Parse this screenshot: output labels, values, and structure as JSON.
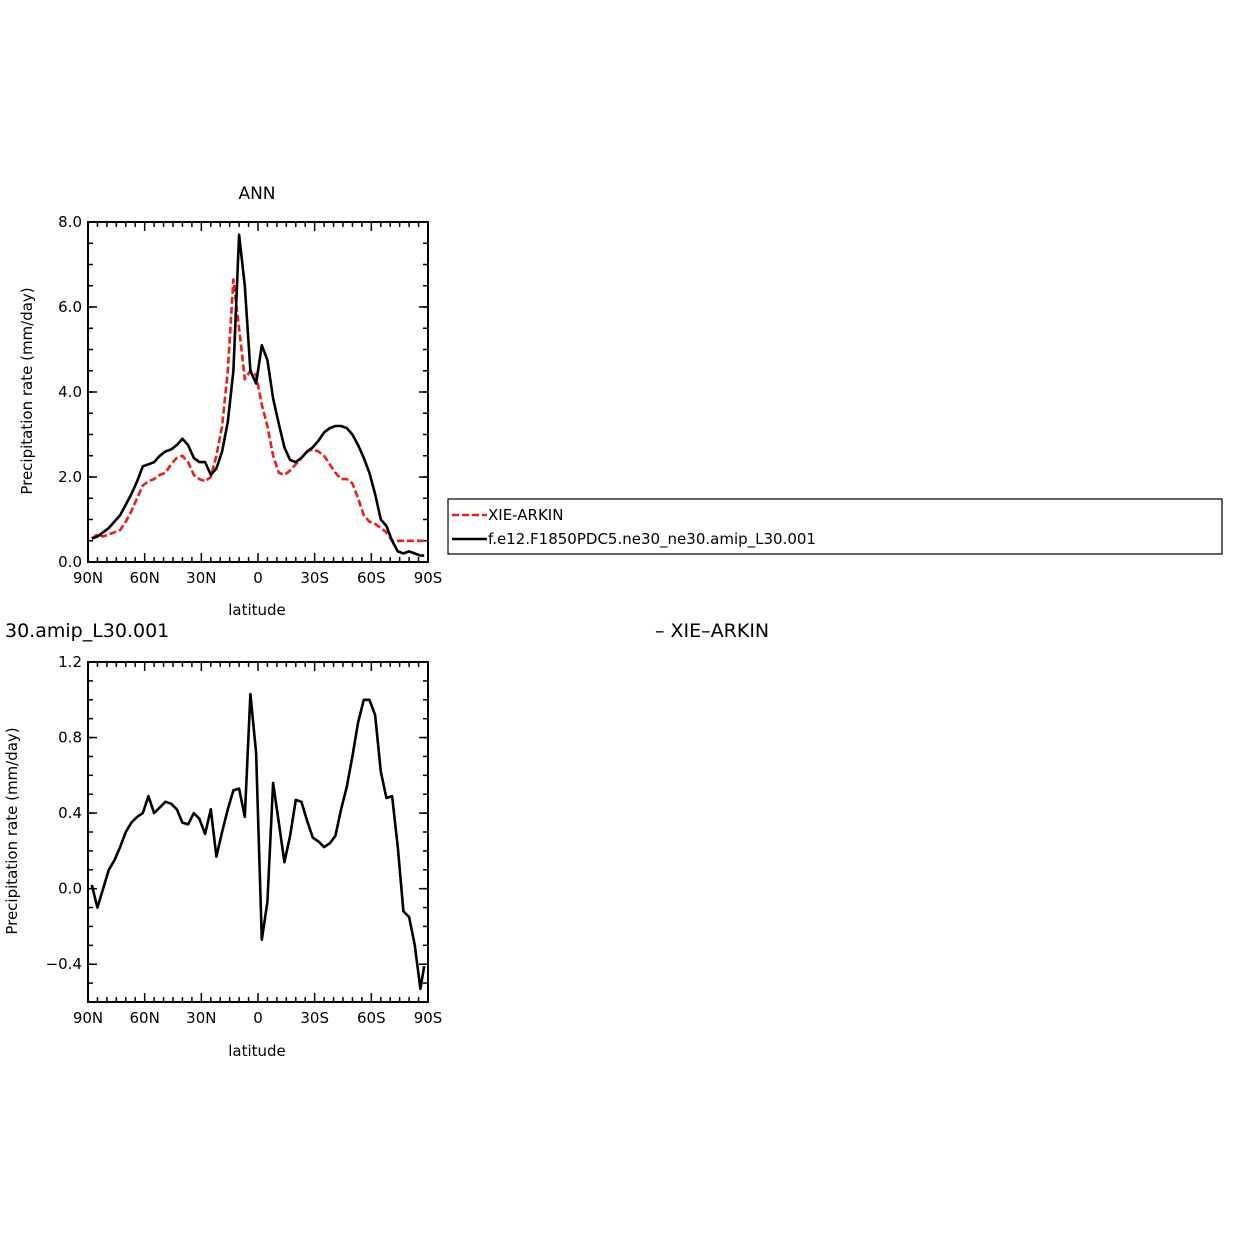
{
  "chart_data": [
    {
      "type": "line",
      "title": "ANN",
      "xlabel": "latitude",
      "ylabel": "Precipitation rate (mm/day)",
      "xlim": [
        90,
        -90
      ],
      "ylim": [
        0,
        8
      ],
      "xticks": [
        {
          "v": 90,
          "label": "90N"
        },
        {
          "v": 60,
          "label": "60N"
        },
        {
          "v": 30,
          "label": "30N"
        },
        {
          "v": 0,
          "label": "0"
        },
        {
          "v": -30,
          "label": "30S"
        },
        {
          "v": -60,
          "label": "60S"
        },
        {
          "v": -90,
          "label": "90S"
        }
      ],
      "yticks": [
        {
          "v": 0,
          "label": "0.0"
        },
        {
          "v": 2,
          "label": "2.0"
        },
        {
          "v": 4,
          "label": "4.0"
        },
        {
          "v": 6,
          "label": "6.0"
        },
        {
          "v": 8,
          "label": "8.0"
        }
      ],
      "legend_position": "right",
      "series": [
        {
          "name": "XIE-ARKIN",
          "color": "#e8201a",
          "dash": "dashed",
          "x": [
            88,
            85,
            82,
            79,
            76,
            73,
            70,
            67,
            64,
            61,
            58,
            55,
            52,
            49,
            46,
            43,
            40,
            37,
            34,
            31,
            28,
            25,
            22,
            19,
            16,
            13,
            10,
            7,
            4,
            1,
            -2,
            -5,
            -8,
            -11,
            -14,
            -17,
            -20,
            -23,
            -26,
            -29,
            -32,
            -35,
            -38,
            -41,
            -44,
            -47,
            -50,
            -53,
            -56,
            -59,
            -62,
            -65,
            -68,
            -71,
            -74,
            -77,
            -80,
            -83,
            -86,
            -88
          ],
          "y": [
            0.55,
            0.65,
            0.6,
            0.65,
            0.7,
            0.75,
            0.95,
            1.2,
            1.5,
            1.8,
            1.9,
            1.95,
            2.05,
            2.1,
            2.3,
            2.45,
            2.5,
            2.35,
            2.05,
            1.95,
            1.9,
            2.0,
            2.5,
            3.2,
            4.5,
            6.65,
            5.5,
            4.3,
            4.5,
            4.4,
            3.7,
            3.2,
            2.5,
            2.1,
            2.05,
            2.15,
            2.3,
            2.45,
            2.6,
            2.65,
            2.6,
            2.5,
            2.3,
            2.1,
            1.95,
            1.95,
            1.85,
            1.5,
            1.1,
            0.95,
            0.9,
            0.8,
            0.7,
            0.5,
            0.5,
            0.5,
            0.5,
            0.5,
            0.5,
            0.5
          ]
        },
        {
          "name": "f.e12.F1850PDC5.ne30_ne30.amip_L30.001",
          "color": "#000000",
          "dash": "solid",
          "x": [
            88,
            85,
            82,
            79,
            76,
            73,
            70,
            67,
            64,
            61,
            58,
            55,
            52,
            49,
            46,
            43,
            40,
            37,
            34,
            31,
            28,
            25,
            22,
            19,
            16,
            13,
            10,
            7,
            4,
            1,
            -2,
            -5,
            -8,
            -11,
            -14,
            -17,
            -20,
            -23,
            -26,
            -29,
            -32,
            -35,
            -38,
            -41,
            -44,
            -47,
            -50,
            -53,
            -56,
            -59,
            -62,
            -65,
            -68,
            -71,
            -74,
            -77,
            -80,
            -83,
            -86,
            -88
          ],
          "y": [
            0.55,
            0.6,
            0.7,
            0.8,
            0.95,
            1.1,
            1.35,
            1.6,
            1.9,
            2.25,
            2.3,
            2.35,
            2.5,
            2.6,
            2.65,
            2.75,
            2.9,
            2.75,
            2.45,
            2.35,
            2.35,
            2.05,
            2.2,
            2.6,
            3.3,
            4.5,
            7.7,
            6.5,
            4.5,
            4.2,
            5.1,
            4.75,
            3.85,
            3.25,
            2.7,
            2.4,
            2.35,
            2.45,
            2.6,
            2.7,
            2.85,
            3.05,
            3.15,
            3.2,
            3.2,
            3.15,
            3.0,
            2.75,
            2.45,
            2.1,
            1.6,
            1.0,
            0.85,
            0.5,
            0.25,
            0.2,
            0.25,
            0.2,
            0.15,
            0.15
          ]
        }
      ]
    },
    {
      "type": "line",
      "title_left": "30.amip_L30.001",
      "title_right": "– XIE–ARKIN",
      "xlabel": "latitude",
      "ylabel": "Precipitation rate (mm/day)",
      "xlim": [
        90,
        -90
      ],
      "ylim": [
        -0.6,
        1.2
      ],
      "xticks": [
        {
          "v": 90,
          "label": "90N"
        },
        {
          "v": 60,
          "label": "60N"
        },
        {
          "v": 30,
          "label": "30N"
        },
        {
          "v": 0,
          "label": "0"
        },
        {
          "v": -30,
          "label": "30S"
        },
        {
          "v": -60,
          "label": "60S"
        },
        {
          "v": -90,
          "label": "90S"
        }
      ],
      "yticks": [
        {
          "v": -0.4,
          "label": "−0.4"
        },
        {
          "v": 0.0,
          "label": "0.0"
        },
        {
          "v": 0.4,
          "label": "0.4"
        },
        {
          "v": 0.8,
          "label": "0.8"
        },
        {
          "v": 1.2,
          "label": "1.2"
        }
      ],
      "series": [
        {
          "color": "#000000",
          "dash": "solid",
          "x": [
            88,
            85,
            82,
            79,
            76,
            73,
            70,
            67,
            64,
            61,
            58,
            55,
            52,
            49,
            46,
            43,
            40,
            37,
            34,
            31,
            28,
            25,
            22,
            19,
            16,
            13,
            10,
            7,
            4,
            1,
            -2,
            -5,
            -8,
            -11,
            -14,
            -17,
            -20,
            -23,
            -26,
            -29,
            -32,
            -35,
            -38,
            -41,
            -44,
            -47,
            -50,
            -53,
            -56,
            -59,
            -62,
            -65,
            -68,
            -71,
            -74,
            -77,
            -80,
            -83,
            -86,
            -88
          ],
          "y": [
            0.02,
            -0.1,
            0.0,
            0.1,
            0.15,
            0.22,
            0.3,
            0.35,
            0.38,
            0.4,
            0.49,
            0.4,
            0.43,
            0.46,
            0.45,
            0.42,
            0.35,
            0.34,
            0.4,
            0.37,
            0.29,
            0.42,
            0.17,
            0.3,
            0.42,
            0.52,
            0.53,
            0.38,
            1.03,
            0.72,
            -0.27,
            -0.07,
            0.56,
            0.35,
            0.14,
            0.28,
            0.47,
            0.46,
            0.36,
            0.27,
            0.25,
            0.22,
            0.24,
            0.28,
            0.42,
            0.54,
            0.7,
            0.88,
            1.0,
            1.0,
            0.92,
            0.62,
            0.48,
            0.49,
            0.22,
            -0.12,
            -0.15,
            -0.3,
            -0.53,
            -0.41
          ]
        }
      ]
    }
  ],
  "legend": {
    "entries": [
      "XIE-ARKIN",
      "f.e12.F1850PDC5.ne30_ne30.amip_L30.001"
    ]
  }
}
